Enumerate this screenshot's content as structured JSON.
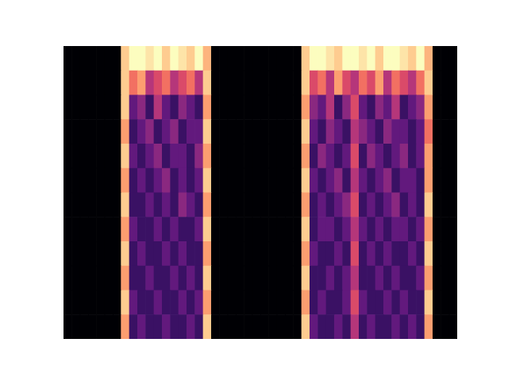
{
  "chart_data": {
    "type": "heatmap",
    "color": "magma",
    "tick_labels": false,
    "color_range": [
      0,
      1
    ],
    "cells": [
      [
        0,
        0,
        0,
        0,
        0,
        0,
        0,
        0.9,
        1,
        1,
        0.95,
        1,
        0.9,
        1,
        0.95,
        0.9,
        1,
        0.85,
        0,
        0,
        0,
        0,
        0,
        0,
        0,
        0,
        0,
        0,
        0,
        0.9,
        1,
        1,
        0.95,
        0.9,
        1,
        1,
        0.95,
        1,
        0.9,
        1,
        1,
        0.95,
        0.9,
        1,
        0.85,
        0,
        0,
        0
      ],
      [
        0,
        0,
        0,
        0,
        0,
        0,
        0,
        0.9,
        0.7,
        0.8,
        0.5,
        0.6,
        0.7,
        0.5,
        0.6,
        0.7,
        0.5,
        0.9,
        0,
        0,
        0,
        0,
        0,
        0,
        0,
        0,
        0,
        0,
        0,
        0.9,
        0.6,
        0.7,
        0.5,
        0.8,
        0.6,
        0.5,
        0.7,
        0.6,
        0.8,
        0.5,
        0.7,
        0.6,
        0.5,
        0.7,
        0.9,
        0,
        0,
        0
      ],
      [
        0,
        0,
        0,
        0,
        0,
        0,
        0,
        0.9,
        0.3,
        0.4,
        0.2,
        0.5,
        0.3,
        0.2,
        0.4,
        0.3,
        0.2,
        0.8,
        0,
        0,
        0,
        0,
        0,
        0,
        0,
        0,
        0,
        0,
        0,
        0.8,
        0.4,
        0.3,
        0.5,
        0.2,
        0.4,
        0.6,
        0.3,
        0.2,
        0.4,
        0.3,
        0.5,
        0.2,
        0.3,
        0.4,
        0.8,
        0,
        0,
        0
      ],
      [
        0,
        0,
        0,
        0,
        0,
        0,
        0,
        0.8,
        0.2,
        0.3,
        0.4,
        0.2,
        0.3,
        0.4,
        0.2,
        0.3,
        0.3,
        0.9,
        0,
        0,
        0,
        0,
        0,
        0,
        0,
        0,
        0,
        0,
        0,
        0.9,
        0.3,
        0.2,
        0.4,
        0.3,
        0.2,
        0.5,
        0.4,
        0.3,
        0.2,
        0.4,
        0.3,
        0.3,
        0.2,
        0.3,
        0.7,
        0,
        0,
        0
      ],
      [
        0,
        0,
        0,
        0,
        0,
        0,
        0,
        0.9,
        0.3,
        0.2,
        0.3,
        0.4,
        0.2,
        0.3,
        0.3,
        0.2,
        0.4,
        0.8,
        0,
        0,
        0,
        0,
        0,
        0,
        0,
        0,
        0,
        0,
        0,
        0.8,
        0.2,
        0.4,
        0.3,
        0.2,
        0.3,
        0.6,
        0.2,
        0.4,
        0.3,
        0.2,
        0.3,
        0.4,
        0.2,
        0.3,
        0.8,
        0,
        0,
        0
      ],
      [
        0,
        0,
        0,
        0,
        0,
        0,
        0,
        0.8,
        0.2,
        0.3,
        0.2,
        0.3,
        0.4,
        0.2,
        0.3,
        0.2,
        0.3,
        0.9,
        0,
        0,
        0,
        0,
        0,
        0,
        0,
        0,
        0,
        0,
        0,
        0.9,
        0.3,
        0.2,
        0.3,
        0.4,
        0.2,
        0.5,
        0.3,
        0.2,
        0.3,
        0.4,
        0.2,
        0.3,
        0.3,
        0.2,
        0.8,
        0,
        0,
        0
      ],
      [
        0,
        0,
        0,
        0,
        0,
        0,
        0,
        0.9,
        0.2,
        0.2,
        0.3,
        0.2,
        0.3,
        0.2,
        0.4,
        0.3,
        0.2,
        0.8,
        0,
        0,
        0,
        0,
        0,
        0,
        0,
        0,
        0,
        0,
        0,
        0.8,
        0.2,
        0.3,
        0.2,
        0.3,
        0.4,
        0.6,
        0.2,
        0.3,
        0.2,
        0.3,
        0.4,
        0.2,
        0.3,
        0.2,
        0.9,
        0,
        0,
        0
      ],
      [
        0,
        0,
        0,
        0,
        0,
        0,
        0,
        0.8,
        0.3,
        0.2,
        0.2,
        0.3,
        0.2,
        0.3,
        0.2,
        0.2,
        0.3,
        0.9,
        0,
        0,
        0,
        0,
        0,
        0,
        0,
        0,
        0,
        0,
        0,
        0.9,
        0.2,
        0.3,
        0.3,
        0.2,
        0.3,
        0.5,
        0.3,
        0.2,
        0.3,
        0.2,
        0.3,
        0.3,
        0.2,
        0.3,
        0.8,
        0,
        0,
        0
      ],
      [
        0,
        0,
        0,
        0,
        0,
        0,
        0,
        0.9,
        0.2,
        0.3,
        0.2,
        0.2,
        0.3,
        0.2,
        0.3,
        0.2,
        0.2,
        0.8,
        0,
        0,
        0,
        0,
        0,
        0,
        0,
        0,
        0,
        0,
        0,
        0.8,
        0.3,
        0.2,
        0.2,
        0.3,
        0.2,
        0.6,
        0.2,
        0.3,
        0.2,
        0.3,
        0.2,
        0.2,
        0.3,
        0.2,
        0.9,
        0,
        0,
        0
      ],
      [
        0,
        0,
        0,
        0,
        0,
        0,
        0,
        0.8,
        0.2,
        0.2,
        0.3,
        0.2,
        0.2,
        0.3,
        0.2,
        0.3,
        0.2,
        0.9,
        0,
        0,
        0,
        0,
        0,
        0,
        0,
        0,
        0,
        0,
        0,
        0.9,
        0.2,
        0.2,
        0.3,
        0.2,
        0.3,
        0.5,
        0.2,
        0.2,
        0.3,
        0.2,
        0.3,
        0.2,
        0.2,
        0.3,
        0.8,
        0,
        0,
        0
      ],
      [
        0,
        0,
        0,
        0,
        0,
        0,
        0,
        0.9,
        0.3,
        0.2,
        0.2,
        0.3,
        0.2,
        0.2,
        0.3,
        0.2,
        0.3,
        0.8,
        0,
        0,
        0,
        0,
        0,
        0,
        0,
        0,
        0,
        0,
        0,
        0.8,
        0.2,
        0.3,
        0.2,
        0.2,
        0.3,
        0.6,
        0.3,
        0.2,
        0.2,
        0.3,
        0.2,
        0.3,
        0.2,
        0.2,
        0.9,
        0,
        0,
        0
      ],
      [
        0,
        0,
        0,
        0,
        0,
        0,
        0,
        0.8,
        0.2,
        0.3,
        0.2,
        0.2,
        0.3,
        0.2,
        0.2,
        0.3,
        0.2,
        0.9,
        0,
        0,
        0,
        0,
        0,
        0,
        0,
        0,
        0,
        0,
        0,
        0.9,
        0.3,
        0.2,
        0.2,
        0.3,
        0.2,
        0.5,
        0.2,
        0.3,
        0.2,
        0.2,
        0.3,
        0.2,
        0.3,
        0.2,
        0.8,
        0,
        0,
        0
      ]
    ]
  }
}
